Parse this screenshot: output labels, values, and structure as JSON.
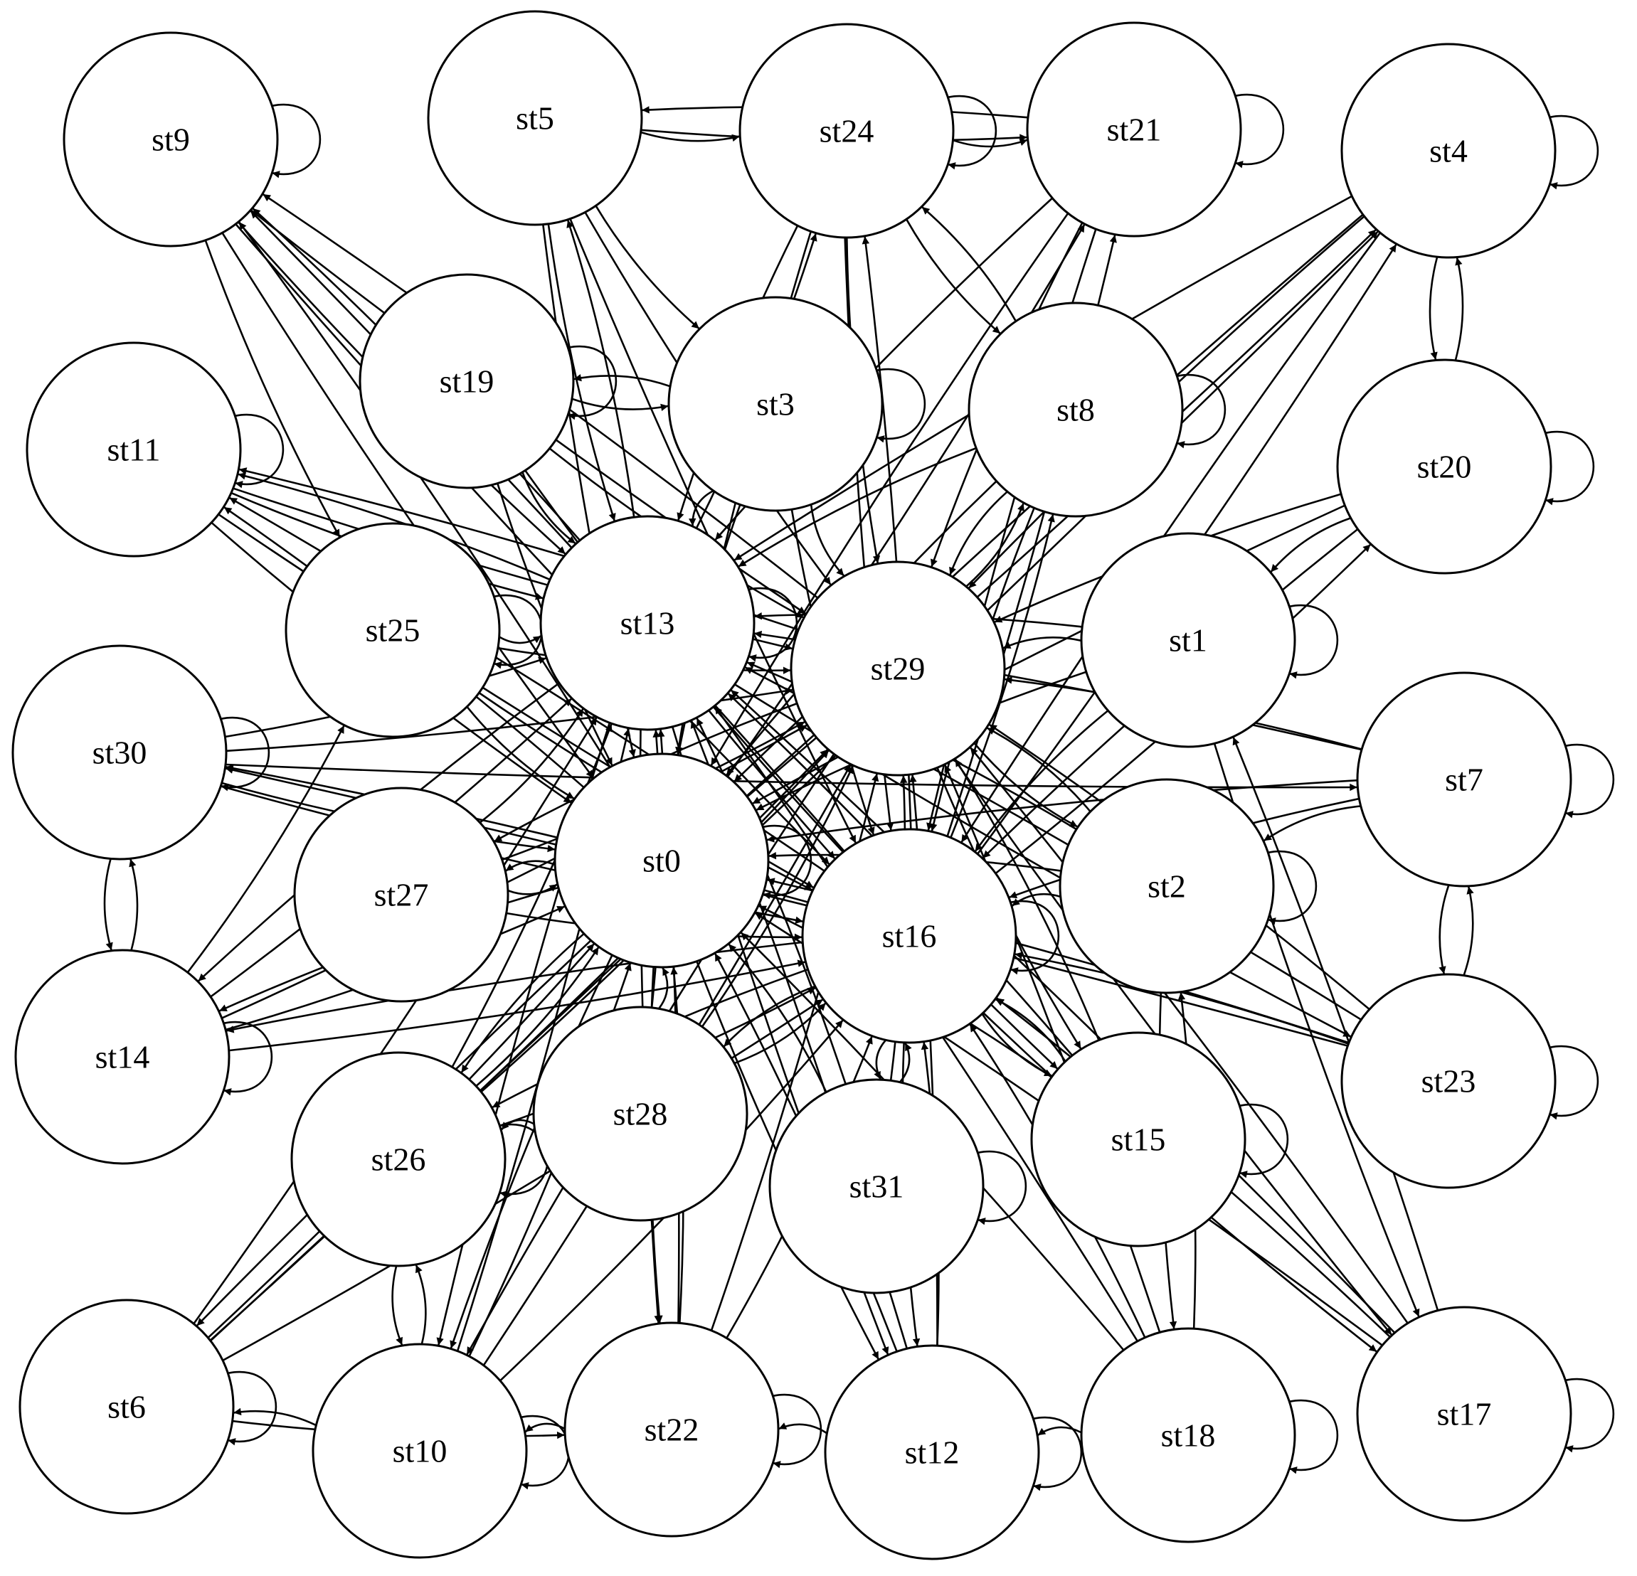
{
  "diagram": {
    "type": "state-machine",
    "nodes": [
      {
        "id": "st0",
        "label": "st0"
      },
      {
        "id": "st1",
        "label": "st1"
      },
      {
        "id": "st2",
        "label": "st2"
      },
      {
        "id": "st3",
        "label": "st3"
      },
      {
        "id": "st4",
        "label": "st4"
      },
      {
        "id": "st5",
        "label": "st5"
      },
      {
        "id": "st6",
        "label": "st6"
      },
      {
        "id": "st7",
        "label": "st7"
      },
      {
        "id": "st8",
        "label": "st8"
      },
      {
        "id": "st9",
        "label": "st9"
      },
      {
        "id": "st10",
        "label": "st10"
      },
      {
        "id": "st11",
        "label": "st11"
      },
      {
        "id": "st12",
        "label": "st12"
      },
      {
        "id": "st13",
        "label": "st13"
      },
      {
        "id": "st14",
        "label": "st14"
      },
      {
        "id": "st15",
        "label": "st15"
      },
      {
        "id": "st16",
        "label": "st16"
      },
      {
        "id": "st17",
        "label": "st17"
      },
      {
        "id": "st18",
        "label": "st18"
      },
      {
        "id": "st19",
        "label": "st19"
      },
      {
        "id": "st20",
        "label": "st20"
      },
      {
        "id": "st21",
        "label": "st21"
      },
      {
        "id": "st22",
        "label": "st22"
      },
      {
        "id": "st23",
        "label": "st23"
      },
      {
        "id": "st24",
        "label": "st24"
      },
      {
        "id": "st25",
        "label": "st25"
      },
      {
        "id": "st26",
        "label": "st26"
      },
      {
        "id": "st27",
        "label": "st27"
      },
      {
        "id": "st28",
        "label": "st28"
      },
      {
        "id": "st29",
        "label": "st29"
      },
      {
        "id": "st30",
        "label": "st30"
      },
      {
        "id": "st31",
        "label": "st31"
      }
    ],
    "self_loops": [
      "st0",
      "st1",
      "st2",
      "st3",
      "st4",
      "st6",
      "st7",
      "st8",
      "st9",
      "st10",
      "st11",
      "st12",
      "st13",
      "st14",
      "st15",
      "st16",
      "st17",
      "st18",
      "st19",
      "st20",
      "st21",
      "st22",
      "st23",
      "st24",
      "st25",
      "st26",
      "st30",
      "st31"
    ],
    "edges": [
      [
        "st5",
        "st21"
      ],
      [
        "st21",
        "st5"
      ],
      [
        "st5",
        "st24"
      ],
      [
        "st24",
        "st21"
      ],
      [
        "st4",
        "st20"
      ],
      [
        "st20",
        "st4"
      ],
      [
        "st7",
        "st23"
      ],
      [
        "st23",
        "st7"
      ],
      [
        "st30",
        "st14"
      ],
      [
        "st14",
        "st30"
      ],
      [
        "st26",
        "st10"
      ],
      [
        "st10",
        "st26"
      ],
      [
        "st6",
        "st22"
      ],
      [
        "st10",
        "st6"
      ],
      [
        "st19",
        "st3"
      ],
      [
        "st3",
        "st19"
      ],
      [
        "st22",
        "st10"
      ],
      [
        "st12",
        "st22"
      ],
      [
        "st18",
        "st12"
      ],
      [
        "st9",
        "st25"
      ],
      [
        "st9",
        "st13"
      ],
      [
        "st9",
        "st0"
      ],
      [
        "st9",
        "st16"
      ],
      [
        "st9",
        "st29"
      ],
      [
        "st5",
        "st13"
      ],
      [
        "st5",
        "st0"
      ],
      [
        "st5",
        "st16"
      ],
      [
        "st5",
        "st29"
      ],
      [
        "st5",
        "st3"
      ],
      [
        "st24",
        "st13"
      ],
      [
        "st24",
        "st0"
      ],
      [
        "st24",
        "st16"
      ],
      [
        "st24",
        "st29"
      ],
      [
        "st24",
        "st8"
      ],
      [
        "st8",
        "st24"
      ],
      [
        "st21",
        "st13"
      ],
      [
        "st21",
        "st0"
      ],
      [
        "st21",
        "st16"
      ],
      [
        "st21",
        "st29"
      ],
      [
        "st4",
        "st13"
      ],
      [
        "st4",
        "st0"
      ],
      [
        "st4",
        "st16"
      ],
      [
        "st4",
        "st29"
      ],
      [
        "st20",
        "st0"
      ],
      [
        "st20",
        "st16"
      ],
      [
        "st20",
        "st29"
      ],
      [
        "st20",
        "st1"
      ],
      [
        "st11",
        "st13"
      ],
      [
        "st11",
        "st0"
      ],
      [
        "st11",
        "st16"
      ],
      [
        "st11",
        "st29"
      ],
      [
        "st19",
        "st13"
      ],
      [
        "st19",
        "st0"
      ],
      [
        "st19",
        "st16"
      ],
      [
        "st19",
        "st29"
      ],
      [
        "st3",
        "st13"
      ],
      [
        "st3",
        "st0"
      ],
      [
        "st3",
        "st16"
      ],
      [
        "st3",
        "st29"
      ],
      [
        "st8",
        "st13"
      ],
      [
        "st8",
        "st0"
      ],
      [
        "st8",
        "st16"
      ],
      [
        "st8",
        "st29"
      ],
      [
        "st25",
        "st13"
      ],
      [
        "st25",
        "st0"
      ],
      [
        "st25",
        "st16"
      ],
      [
        "st25",
        "st29"
      ],
      [
        "st30",
        "st13"
      ],
      [
        "st30",
        "st0"
      ],
      [
        "st30",
        "st16"
      ],
      [
        "st30",
        "st29"
      ],
      [
        "st30",
        "st7"
      ],
      [
        "st1",
        "st13"
      ],
      [
        "st1",
        "st0"
      ],
      [
        "st1",
        "st16"
      ],
      [
        "st1",
        "st29"
      ],
      [
        "st7",
        "st13"
      ],
      [
        "st7",
        "st0"
      ],
      [
        "st7",
        "st16"
      ],
      [
        "st7",
        "st29"
      ],
      [
        "st7",
        "st2"
      ],
      [
        "st27",
        "st13"
      ],
      [
        "st27",
        "st0"
      ],
      [
        "st27",
        "st16"
      ],
      [
        "st27",
        "st29"
      ],
      [
        "st2",
        "st13"
      ],
      [
        "st2",
        "st0"
      ],
      [
        "st2",
        "st16"
      ],
      [
        "st2",
        "st29"
      ],
      [
        "st2",
        "st18"
      ],
      [
        "st14",
        "st13"
      ],
      [
        "st14",
        "st0"
      ],
      [
        "st14",
        "st16"
      ],
      [
        "st14",
        "st29"
      ],
      [
        "st14",
        "st25"
      ],
      [
        "st23",
        "st13"
      ],
      [
        "st23",
        "st0"
      ],
      [
        "st23",
        "st16"
      ],
      [
        "st23",
        "st29"
      ],
      [
        "st23",
        "st30"
      ],
      [
        "st26",
        "st13"
      ],
      [
        "st26",
        "st0"
      ],
      [
        "st26",
        "st16"
      ],
      [
        "st26",
        "st29"
      ],
      [
        "st28",
        "st13"
      ],
      [
        "st28",
        "st0"
      ],
      [
        "st28",
        "st16"
      ],
      [
        "st28",
        "st29"
      ],
      [
        "st28",
        "st26"
      ],
      [
        "st31",
        "st13"
      ],
      [
        "st31",
        "st0"
      ],
      [
        "st31",
        "st16"
      ],
      [
        "st31",
        "st29"
      ],
      [
        "st15",
        "st13"
      ],
      [
        "st15",
        "st0"
      ],
      [
        "st15",
        "st16"
      ],
      [
        "st15",
        "st29"
      ],
      [
        "st6",
        "st13"
      ],
      [
        "st6",
        "st0"
      ],
      [
        "st6",
        "st16"
      ],
      [
        "st6",
        "st29"
      ],
      [
        "st6",
        "st4"
      ],
      [
        "st10",
        "st13"
      ],
      [
        "st10",
        "st0"
      ],
      [
        "st10",
        "st16"
      ],
      [
        "st10",
        "st29"
      ],
      [
        "st22",
        "st13"
      ],
      [
        "st22",
        "st0"
      ],
      [
        "st22",
        "st16"
      ],
      [
        "st22",
        "st29"
      ],
      [
        "st12",
        "st13"
      ],
      [
        "st12",
        "st0"
      ],
      [
        "st12",
        "st16"
      ],
      [
        "st12",
        "st29"
      ],
      [
        "st18",
        "st13"
      ],
      [
        "st18",
        "st0"
      ],
      [
        "st18",
        "st16"
      ],
      [
        "st18",
        "st29"
      ],
      [
        "st18",
        "st2"
      ],
      [
        "st17",
        "st13"
      ],
      [
        "st17",
        "st0"
      ],
      [
        "st17",
        "st16"
      ],
      [
        "st17",
        "st29"
      ],
      [
        "st17",
        "st1"
      ],
      [
        "st1",
        "st17"
      ],
      [
        "st13",
        "st9"
      ],
      [
        "st13",
        "st11"
      ],
      [
        "st13",
        "st14"
      ],
      [
        "st13",
        "st5"
      ],
      [
        "st13",
        "st24"
      ],
      [
        "st13",
        "st10"
      ],
      [
        "st13",
        "st12"
      ],
      [
        "st13",
        "st22"
      ],
      [
        "st13",
        "st15"
      ],
      [
        "st13",
        "st23"
      ],
      [
        "st0",
        "st9"
      ],
      [
        "st0",
        "st11"
      ],
      [
        "st0",
        "st27"
      ],
      [
        "st0",
        "st14"
      ],
      [
        "st0",
        "st26"
      ],
      [
        "st0",
        "st10"
      ],
      [
        "st0",
        "st22"
      ],
      [
        "st0",
        "st12"
      ],
      [
        "st0",
        "st4"
      ],
      [
        "st0",
        "st21"
      ],
      [
        "st16",
        "st9"
      ],
      [
        "st16",
        "st11"
      ],
      [
        "st16",
        "st30"
      ],
      [
        "st16",
        "st14"
      ],
      [
        "st16",
        "st26"
      ],
      [
        "st16",
        "st28"
      ],
      [
        "st16",
        "st31"
      ],
      [
        "st16",
        "st12"
      ],
      [
        "st16",
        "st15"
      ],
      [
        "st16",
        "st21"
      ],
      [
        "st16",
        "st24"
      ],
      [
        "st16",
        "st4"
      ],
      [
        "st16",
        "st17"
      ],
      [
        "st16",
        "st20"
      ],
      [
        "st16",
        "st8"
      ],
      [
        "st29",
        "st9"
      ],
      [
        "st29",
        "st11"
      ],
      [
        "st29",
        "st27"
      ],
      [
        "st29",
        "st2"
      ],
      [
        "st29",
        "st17"
      ],
      [
        "st29",
        "st15"
      ],
      [
        "st29",
        "st6"
      ],
      [
        "st29",
        "st10"
      ],
      [
        "st29",
        "st8"
      ]
    ]
  }
}
